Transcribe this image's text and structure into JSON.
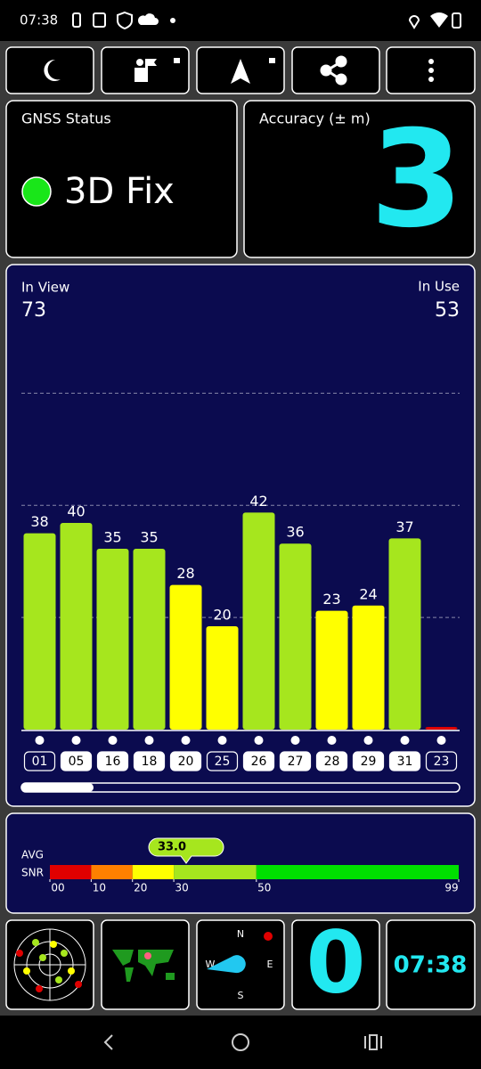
{
  "status_bar": {
    "time": "07:38"
  },
  "gnss_status": {
    "title": "GNSS Status",
    "fix": "3D Fix"
  },
  "accuracy": {
    "title": "Accuracy (± m)",
    "value": 3
  },
  "chart_data": {
    "type": "bar",
    "in_view_label": "In View",
    "in_view": 73,
    "in_use_label": "In Use",
    "in_use": 53,
    "categories": [
      "01",
      "05",
      "16",
      "18",
      "20",
      "25",
      "26",
      "27",
      "28",
      "29",
      "31",
      "23"
    ],
    "values": [
      38,
      40,
      35,
      35,
      28,
      20,
      42,
      36,
      23,
      24,
      37,
      0
    ],
    "colors": [
      "#a6e61e",
      "#a6e61e",
      "#a6e61e",
      "#a6e61e",
      "#ffff00",
      "#ffff00",
      "#a6e61e",
      "#a6e61e",
      "#ffff00",
      "#ffff00",
      "#a6e61e",
      "#e00000"
    ],
    "in_use_flags": [
      false,
      true,
      true,
      true,
      true,
      false,
      true,
      true,
      true,
      true,
      true,
      false
    ],
    "ylim": [
      0,
      80
    ],
    "gridlines": [
      21.7,
      43.4,
      65.1
    ]
  },
  "snr": {
    "avg_label": "AVG",
    "snr_label": "SNR",
    "avg": 33.0,
    "avg_label_text": "33.0",
    "xlim": [
      0,
      99
    ],
    "xticks": [
      {
        "value": 0,
        "label": "00"
      },
      10,
      20,
      30,
      50,
      99
    ],
    "segments": [
      {
        "from": 0,
        "to": 10,
        "color": "#e00000"
      },
      {
        "from": 10,
        "to": 20,
        "color": "#ff8000"
      },
      {
        "from": 20,
        "to": 30,
        "color": "#ffff00"
      },
      {
        "from": 30,
        "to": 50,
        "color": "#a6e61e"
      },
      {
        "from": 50,
        "to": 99,
        "color": "#00e000"
      }
    ]
  },
  "tiles": {
    "compass": {
      "n": "N",
      "e": "E",
      "s": "S",
      "w": "W"
    },
    "speed": 0,
    "clock": "07:38"
  }
}
